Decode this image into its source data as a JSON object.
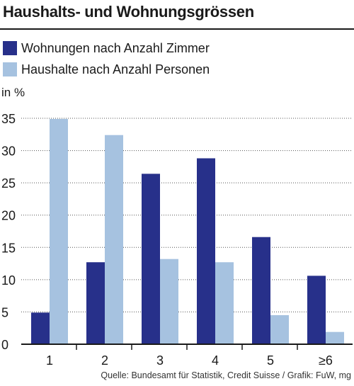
{
  "chart_data": {
    "type": "bar",
    "title": "Haushalts- und Wohnungsgrössen",
    "ylabel": "in %",
    "categories": [
      "1",
      "2",
      "3",
      "4",
      "5",
      "≥6"
    ],
    "series": [
      {
        "name": "Wohnungen nach Anzahl Zimmer",
        "color": "#27308a",
        "values": [
          4.9,
          12.7,
          26.4,
          28.8,
          16.6,
          10.6
        ]
      },
      {
        "name": "Haushalte nach Anzahl Personen",
        "color": "#a6c2e0",
        "values": [
          34.9,
          32.4,
          13.2,
          12.7,
          4.5,
          1.9
        ]
      }
    ],
    "yticks": [
      0,
      5,
      10,
      15,
      20,
      25,
      30,
      35
    ],
    "ylim": [
      0,
      35
    ],
    "grid": "horizontal-dotted",
    "legend": "top-left"
  },
  "source": "Quelle: Bundesamt für Statistik, Credit Suisse / Grafik: FuW, mg"
}
